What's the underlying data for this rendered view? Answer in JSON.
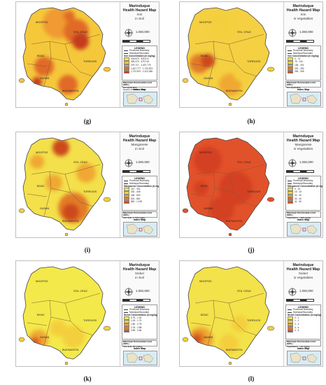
{
  "panels": [
    {
      "id": "g",
      "caption": "(g)",
      "title": "Marinduque\nHealth Hazard Map",
      "subtitle": "Iron\nin Soil",
      "scale": "1:250,000",
      "legend_title": "LEGEND",
      "legend_lines": [
        "Provincial Boundary",
        "Municipal Boundary"
      ],
      "legend_class_title": "Iron Concentration (in mg/kg)",
      "classes": [
        "204,879 - 325,472",
        "325,473 - 479,716",
        "479,717 - 1,407,776",
        "1,407,777 - 1,722,873",
        "1,722,874 - 2,101,360"
      ],
      "colors": [
        "#f6ea4a",
        "#f6c53a",
        "#f09a30",
        "#e06a25",
        "#c73a1c"
      ],
      "mpl_title": "Maximum Permissible Limit (MPL)",
      "mpl_lines": [
        "Not applicable",
        "Source: PEMSEA, 2017"
      ],
      "index_title": "Index Map"
    },
    {
      "id": "h",
      "caption": "(h)",
      "title": "Marinduque\nHealth Hazard Map",
      "subtitle": "Iron\nin Vegetables",
      "scale": "1:250,000",
      "legend_title": "LEGEND",
      "legend_lines": [
        "Provincial Boundary",
        "Municipal Boundary"
      ],
      "legend_class_title": "Iron Concentration (in mg/kg)",
      "classes": [
        "0 - 74",
        "75 - 134",
        "135 - 201",
        "202 - 253",
        "254 - 305"
      ],
      "colors": [
        "#f6ea4a",
        "#f4cf3c",
        "#f0a832",
        "#e37a27",
        "#cc4a1e"
      ],
      "mpl_title": "Maximum Permissible Limit (MPL)",
      "mpl_lines": [
        "Not applicable"
      ],
      "index_title": "Index Map"
    },
    {
      "id": "i",
      "caption": "(i)",
      "title": "Marinduque\nHealth Hazard Map",
      "subtitle": "Manganese\nin Soil",
      "scale": "1:250,000",
      "legend_title": "LEGEND",
      "legend_lines": [
        "Provincial Boundary",
        "Municipal Boundary"
      ],
      "legend_class_title": "Manganese Concentration (in mg/kg)",
      "classes": [
        "157 - 331",
        "332 - 445",
        "446 - 630",
        "631 - 861",
        "862 - 1,190"
      ],
      "colors": [
        "#f6ea4a",
        "#f4cf3c",
        "#f0a832",
        "#e37a27",
        "#cc4a1e"
      ],
      "mpl_title": "Maximum Permissible Limit (MPL)",
      "mpl_lines": [
        "Soil Stds: 1,760 mg/kg"
      ],
      "index_title": "Index Map"
    },
    {
      "id": "j",
      "caption": "(j)",
      "title": "Marinduque\nHealth Hazard Map",
      "subtitle": "Manganese\nin Vegetables",
      "scale": "1:250,000",
      "legend_title": "LEGEND",
      "legend_lines": [
        "Provincial Boundary",
        "Municipal Boundary"
      ],
      "legend_class_title": "Manganese Concentration (in mg/kg)",
      "classes": [
        "0 - 14",
        "15 - 23",
        "24 - 32",
        "33 - 40",
        "41 - 50"
      ],
      "colors": [
        "#f6ea4a",
        "#f4cf3c",
        "#f0a832",
        "#e06a25",
        "#d84a22"
      ],
      "mpl_title": "Maximum Permissible Limit (MPL)",
      "mpl_lines": [
        "Vegetables: ~ 500 mg/kg"
      ],
      "index_title": "Index Map"
    },
    {
      "id": "k",
      "caption": "(k)",
      "title": "Marinduque\nHealth Hazard Map",
      "subtitle": "Nickel\nin Soil",
      "scale": "1:250,000",
      "legend_title": "LEGEND",
      "legend_lines": [
        "Provincial Boundary",
        "Municipal Boundary"
      ],
      "legend_class_title": "Nickel Concentration (in mg/kg)",
      "classes": [
        "0.79 - 1.02",
        "1.03 - 1.79",
        "1.80 - 2.75",
        "2.76 - 3.58",
        "3.59 - 4.66"
      ],
      "colors": [
        "#f6ea4a",
        "#f4cf3c",
        "#f0a832",
        "#e37a27",
        "#cc4a1e"
      ],
      "mpl_title": "Maximum Permissible Limit (MPL)",
      "mpl_lines": [
        "Soil Stds: 50 mg/kg"
      ],
      "index_title": "Index Map"
    },
    {
      "id": "l",
      "caption": "(l)",
      "title": "Marinduque\nHealth Hazard Map",
      "subtitle": "Nickel\nin Vegetables",
      "scale": "1:250,000",
      "legend_title": "LEGEND",
      "legend_lines": [
        "Provincial Boundary",
        "Municipal Boundary"
      ],
      "legend_class_title": "Nickel Concentration (in mg/kg)",
      "classes": [
        "0 - 1",
        "1 - 2",
        "2 - 3",
        "3 - 4",
        "4 - 5"
      ],
      "colors": [
        "#f6ea4a",
        "#f4cf3c",
        "#f0a832",
        "#e37a27",
        "#cc4a1e"
      ],
      "mpl_title": "Maximum Permissible Limit (MPL)",
      "mpl_lines": [
        "Vegetables: ~ 10 mg/kg"
      ],
      "index_title": "Index Map"
    }
  ],
  "towns": [
    "BOAC",
    "MOGPOG",
    "STA. CRUZ",
    "GASAN",
    "BUENAVISTA",
    "TORRIJOS"
  ]
}
